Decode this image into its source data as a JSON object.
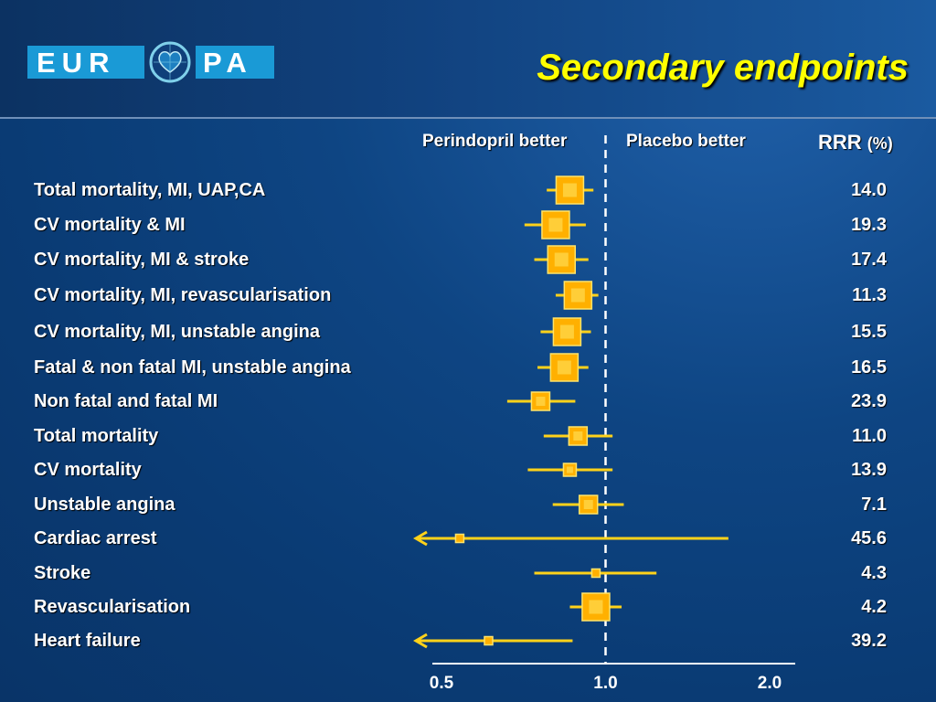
{
  "slide": {
    "title": "Secondary endpoints",
    "logo": {
      "left_text": "EUR",
      "right_text": "PA"
    }
  },
  "headers": {
    "left_favor": "Perindopril better",
    "right_favor": "Placebo better",
    "rrr_label": "RRR",
    "rrr_unit": "(%)"
  },
  "colors": {
    "background": "#0b3a75",
    "title": "#ffff00",
    "marker": "#ffb000",
    "whisker": "#ffd21a",
    "logo": "#1a9ad6",
    "text": "#ffffff"
  },
  "chart_data": {
    "type": "forest",
    "x_scale": "log",
    "xlim": [
      0.5,
      2.0
    ],
    "xticks": [
      "0.5",
      "1.0",
      "2.0"
    ],
    "reference_line": 1.0,
    "rows": [
      {
        "label": "Total mortality, MI, UAP,CA",
        "rrr": "14.0",
        "estimate": 0.86,
        "ci": [
          0.78,
          0.95
        ],
        "marker": "large"
      },
      {
        "label": "CV mortality & MI",
        "rrr": "19.3",
        "estimate": 0.81,
        "ci": [
          0.71,
          0.92
        ],
        "marker": "large"
      },
      {
        "label": "CV mortality, MI & stroke",
        "rrr": "17.4",
        "estimate": 0.83,
        "ci": [
          0.74,
          0.93
        ],
        "marker": "large"
      },
      {
        "label": "CV mortality, MI, revascularisation",
        "rrr": "11.3",
        "estimate": 0.89,
        "ci": [
          0.81,
          0.97
        ],
        "marker": "large"
      },
      {
        "label": "CV mortality, MI, unstable angina",
        "rrr": "15.5",
        "estimate": 0.85,
        "ci": [
          0.76,
          0.94
        ],
        "marker": "large"
      },
      {
        "label": "Fatal & non fatal MI, unstable angina",
        "rrr": "16.5",
        "estimate": 0.84,
        "ci": [
          0.75,
          0.93
        ],
        "marker": "large"
      },
      {
        "label": "Non fatal and fatal MI",
        "rrr": "23.9",
        "estimate": 0.76,
        "ci": [
          0.66,
          0.88
        ],
        "marker": "medium"
      },
      {
        "label": "Total mortality",
        "rrr": "11.0",
        "estimate": 0.89,
        "ci": [
          0.77,
          1.03
        ],
        "marker": "medium"
      },
      {
        "label": "CV mortality",
        "rrr": "13.9",
        "estimate": 0.86,
        "ci": [
          0.72,
          1.03
        ],
        "marker": "small"
      },
      {
        "label": "Unstable angina",
        "rrr": "7.1",
        "estimate": 0.93,
        "ci": [
          0.8,
          1.08
        ],
        "marker": "medium"
      },
      {
        "label": "Cardiac arrest",
        "rrr": "45.6",
        "estimate": 0.54,
        "ci": [
          0.5,
          1.68
        ],
        "marker": "tiny",
        "arrow_left": true
      },
      {
        "label": "Stroke",
        "rrr": "4.3",
        "estimate": 0.96,
        "ci": [
          0.74,
          1.24
        ],
        "marker": "tiny"
      },
      {
        "label": "Revascularisation",
        "rrr": "4.2",
        "estimate": 0.96,
        "ci": [
          0.86,
          1.07
        ],
        "marker": "large"
      },
      {
        "label": "Heart failure",
        "rrr": "39.2",
        "estimate": 0.61,
        "ci": [
          0.5,
          0.87
        ],
        "marker": "tiny",
        "arrow_left": true
      }
    ]
  }
}
